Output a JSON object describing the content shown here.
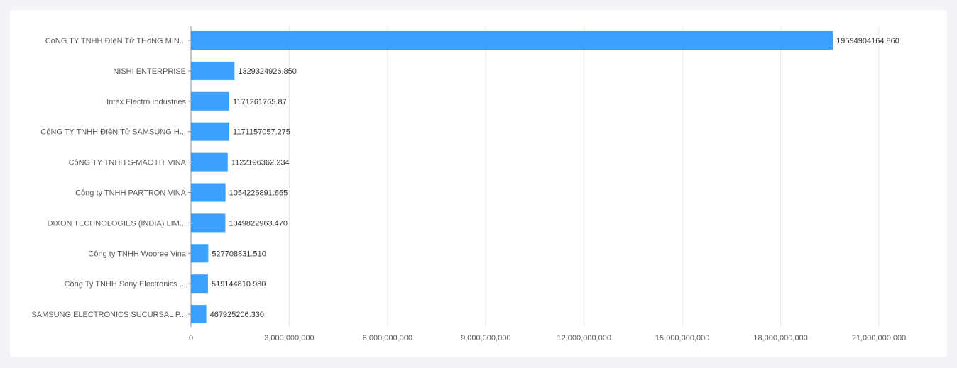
{
  "colors": {
    "bar": "#3aa1ff",
    "grid": "#e8e8e8",
    "axis": "#8c8c8c"
  },
  "chart_data": {
    "type": "bar",
    "orientation": "horizontal",
    "xlim": [
      0,
      21000000000
    ],
    "grid": true,
    "x_ticks": [
      0,
      3000000000,
      6000000000,
      9000000000,
      12000000000,
      15000000000,
      18000000000,
      21000000000
    ],
    "x_tick_labels": [
      "0",
      "3,000,000,000",
      "6,000,000,000",
      "9,000,000,000",
      "12,000,000,000",
      "15,000,000,000",
      "18,000,000,000",
      "21,000,000,000"
    ],
    "categories": [
      "CôNG TY TNHH ĐIệN Tử THôNG MIN...",
      "NISHI ENTERPRISE",
      "Intex Electro Industries",
      "CôNG TY TNHH ĐIệN Tử SAMSUNG H...",
      "CôNG TY TNHH S-MAC HT VINA",
      "Công ty TNHH PARTRON VINA",
      "DIXON TECHNOLOGIES (INDIA) LIM...",
      "Công ty TNHH Wooree Vina",
      "Công Ty TNHH Sony Electronics ...",
      "SAMSUNG ELECTRONICS SUCURSAL P..."
    ],
    "values": [
      19594904164.86,
      1329324926.85,
      1171261765.87,
      1171157057.275,
      1122196362.234,
      1054226891.665,
      1049822963.47,
      527708831.51,
      519144810.98,
      467925206.33
    ],
    "value_labels": [
      "19594904164.860",
      "1329324926.850",
      "1171261765.87",
      "1171157057.275",
      "1122196362.234",
      "1054226891.665",
      "1049822963.470",
      "527708831.510",
      "519144810.980",
      "467925206.330"
    ]
  }
}
